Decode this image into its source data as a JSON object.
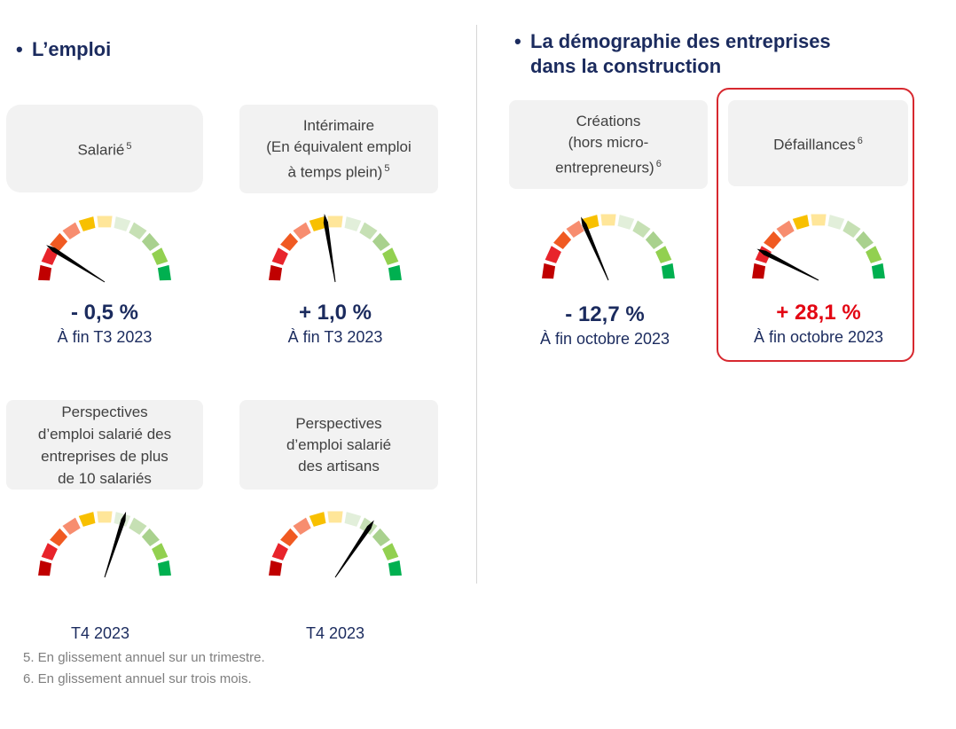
{
  "colors": {
    "segments": [
      "#c00000",
      "#e8242b",
      "#f05a22",
      "#f78d6f",
      "#f8c000",
      "#ffe699",
      "#e2efda",
      "#c6e0b4",
      "#a9d18e",
      "#92d050",
      "#00b050"
    ],
    "value_normal": "#1b2b5e",
    "value_alert": "#e30613"
  },
  "sections": {
    "left": {
      "bullet": "•",
      "title": "L’emploi"
    },
    "right": {
      "bullet": "•",
      "title_line1": "La démographie des entreprises",
      "title_line2": "dans la construction"
    }
  },
  "cards": [
    {
      "lines": [
        "Salarié"
      ],
      "sup": "5"
    },
    {
      "lines": [
        "Intérimaire",
        "(En équivalent emploi",
        "à temps plein)"
      ],
      "sup": "5"
    },
    {
      "lines": [
        "Créations",
        "(hors micro-",
        "entrepreneurs)"
      ],
      "sup": "6"
    },
    {
      "lines": [
        "Défaillances"
      ],
      "sup": "6"
    },
    {
      "lines": [
        "Perspectives",
        "d’emploi salarié des",
        "entreprises de plus",
        "de 10 salariés"
      ],
      "sup": ""
    },
    {
      "lines": [
        "Perspectives",
        "d’emploi salarié",
        "des artisans"
      ],
      "sup": ""
    }
  ],
  "chart_data": [
    {
      "type": "gauge",
      "title": "Salarié",
      "scale": [
        0,
        100
      ],
      "needle": 18,
      "value_label": "- 0,5 %",
      "period": "À fin T3 2023"
    },
    {
      "type": "gauge",
      "title": "Intérimaire",
      "scale": [
        0,
        100
      ],
      "needle": 45,
      "value_label": "+ 1,0 %",
      "period": "À fin T3 2023"
    },
    {
      "type": "gauge",
      "title": "Créations",
      "scale": [
        0,
        100
      ],
      "needle": 37,
      "value_label": "- 12,7 %",
      "period": "À fin octobre 2023"
    },
    {
      "type": "gauge",
      "title": "Défaillances",
      "scale": [
        0,
        100
      ],
      "needle": 15,
      "value_label": "+ 28,1 %",
      "period": "À fin octobre 2023",
      "alert": true
    },
    {
      "type": "gauge",
      "title": "Perspectives d’emploi salarié des entreprises de plus de 10 salariés",
      "scale": [
        0,
        100
      ],
      "needle": 60,
      "value_label": "",
      "period": "T4 2023"
    },
    {
      "type": "gauge",
      "title": "Perspectives d’emploi salarié des artisans",
      "scale": [
        0,
        100
      ],
      "needle": 69,
      "value_label": "",
      "period": "T4 2023"
    }
  ],
  "footnotes": [
    "5. En glissement annuel sur un trimestre.",
    "6. En glissement annuel sur trois mois."
  ]
}
